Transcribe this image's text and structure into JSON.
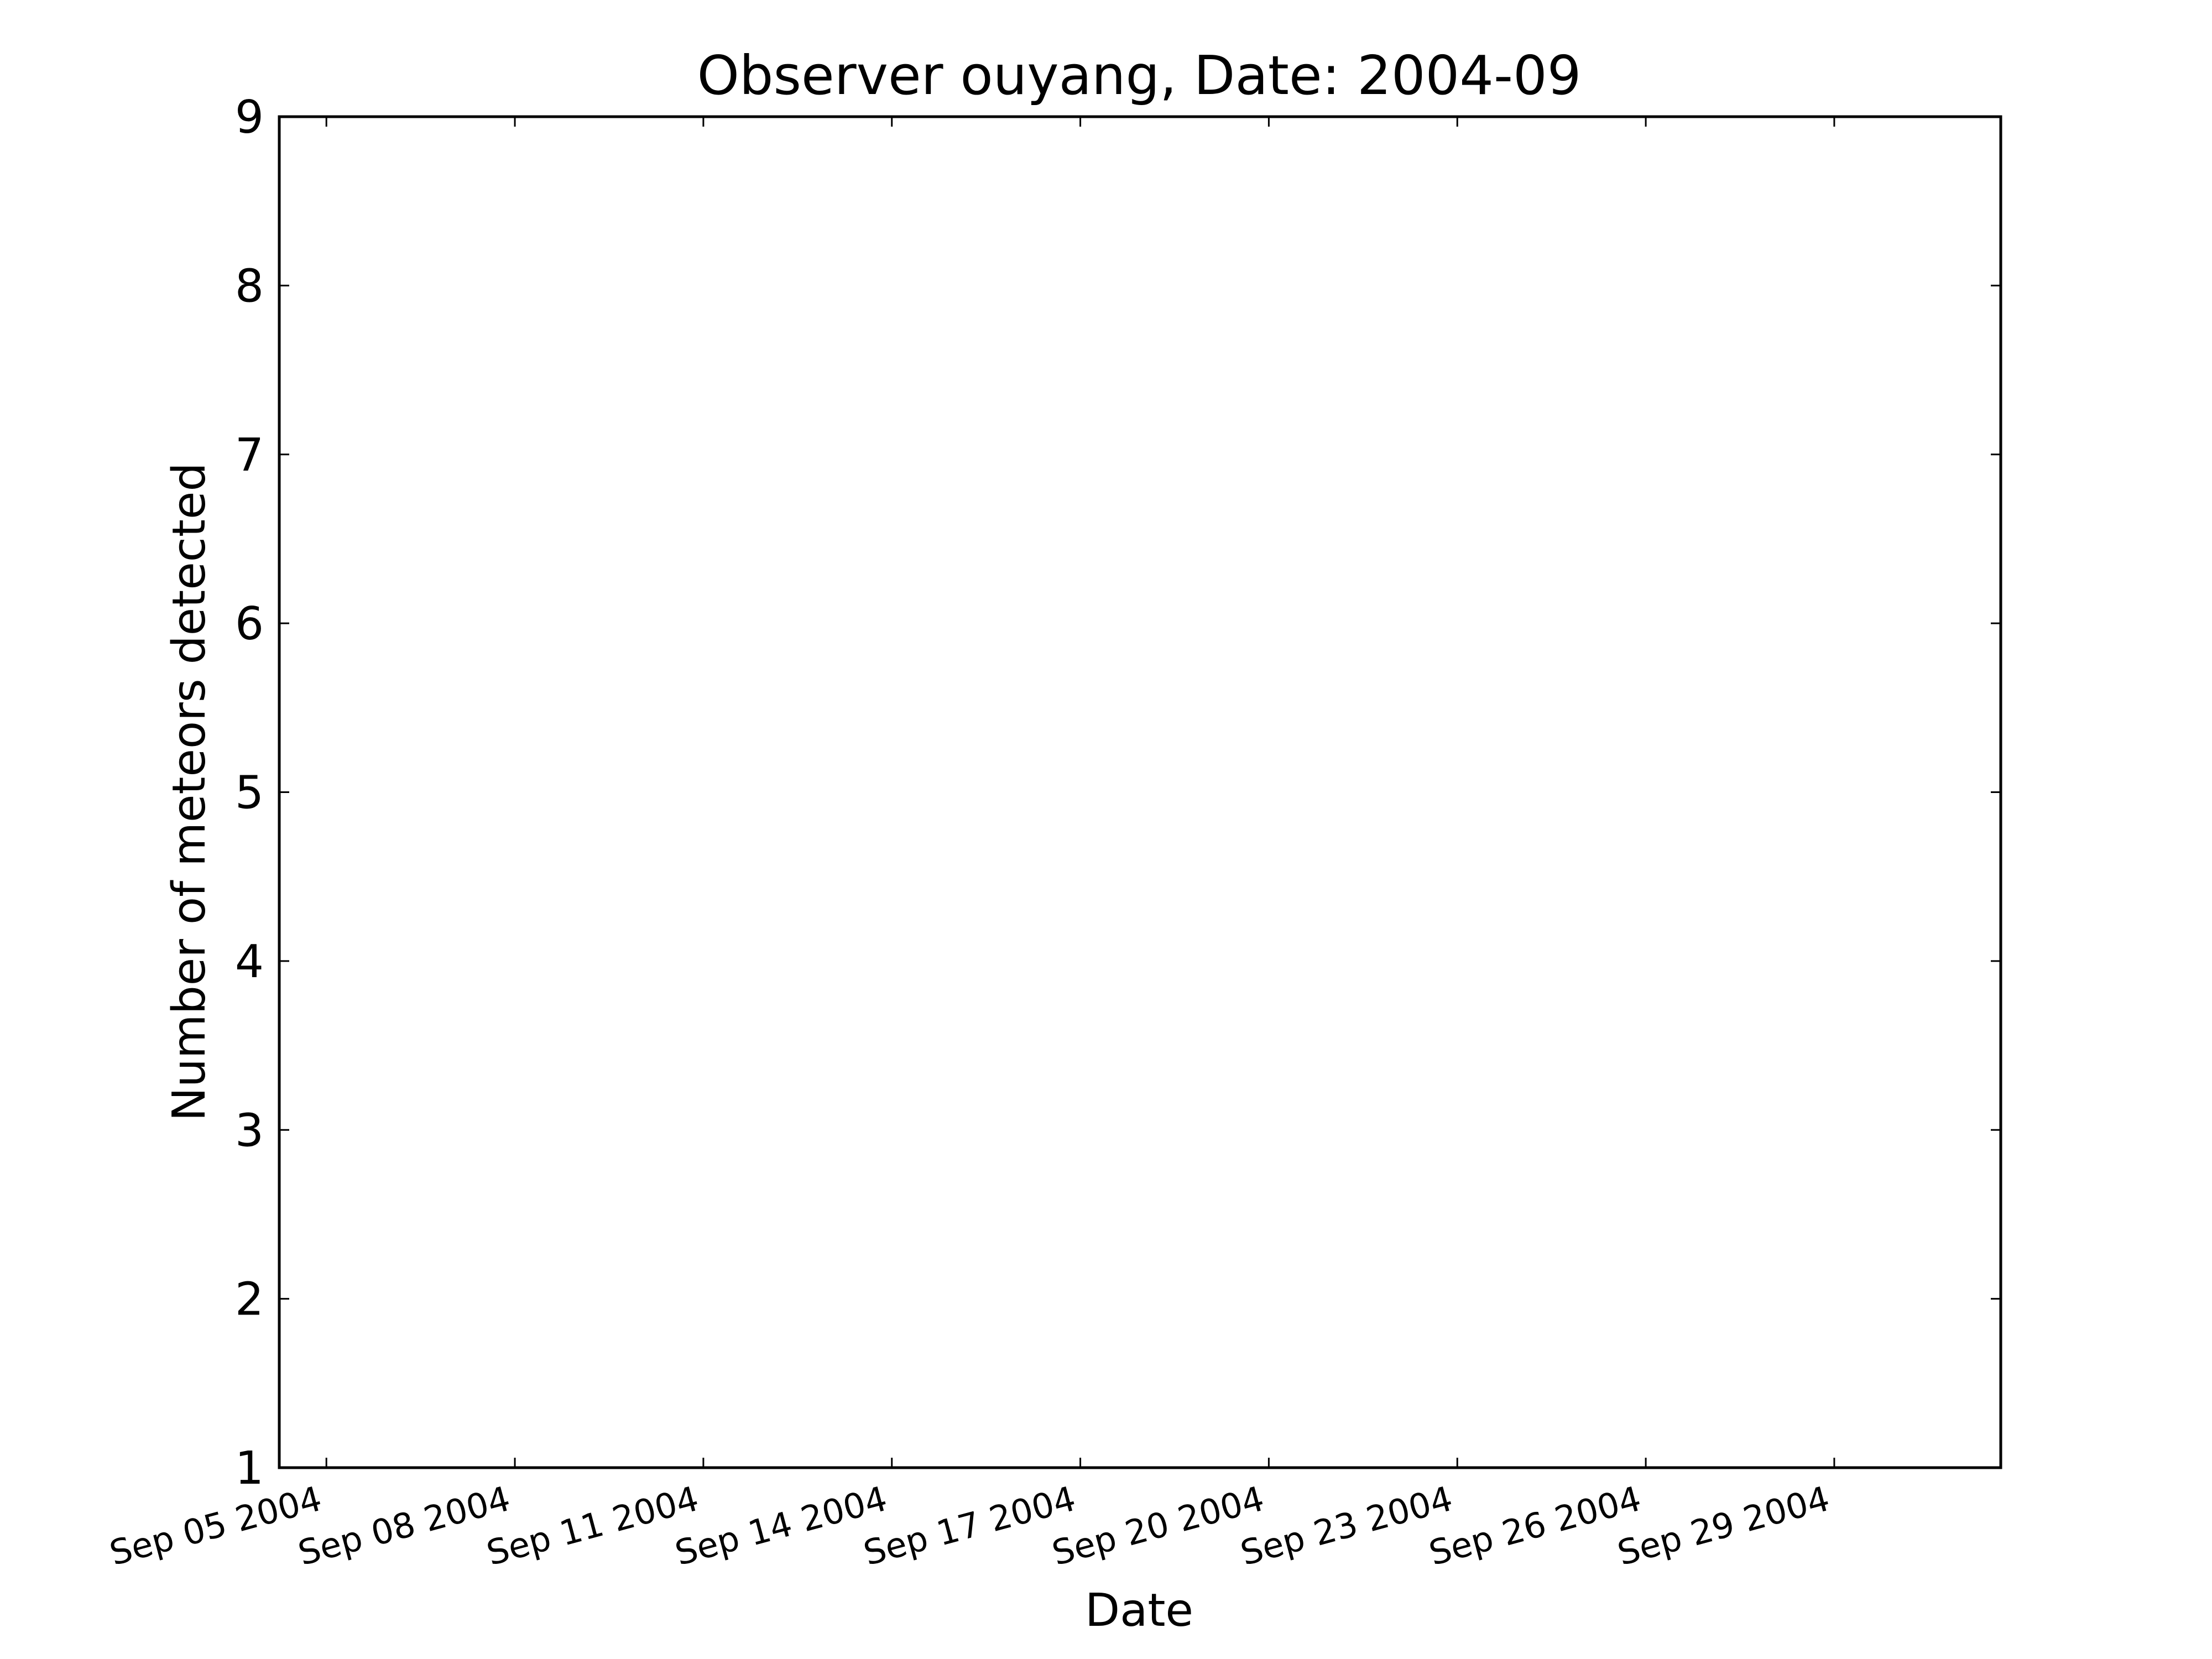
{
  "chart_data": {
    "type": "line",
    "title": "Observer ouyang, Date: 2004-09",
    "xlabel": "Date",
    "ylabel": "Number of meteors detected",
    "x_ticks": [
      "2004-09-05",
      "2004-09-08",
      "2004-09-11",
      "2004-09-14",
      "2004-09-17",
      "2004-09-20",
      "2004-09-23",
      "2004-09-26",
      "2004-09-29"
    ],
    "x_tick_labels": [
      "Sep 05 2004",
      "Sep 08 2004",
      "Sep 11 2004",
      "Sep 14 2004",
      "Sep 17 2004",
      "Sep 20 2004",
      "Sep 23 2004",
      "Sep 26 2004",
      "Sep 29 2004"
    ],
    "xlim": [
      "2004-09-04",
      "2004-10-01"
    ],
    "y_ticks": [
      1,
      2,
      3,
      4,
      5,
      6,
      7,
      8,
      9
    ],
    "ylim": [
      1,
      9
    ],
    "grid": false,
    "series": [],
    "colors": {
      "axes": "#000000",
      "background": "#ffffff"
    }
  }
}
